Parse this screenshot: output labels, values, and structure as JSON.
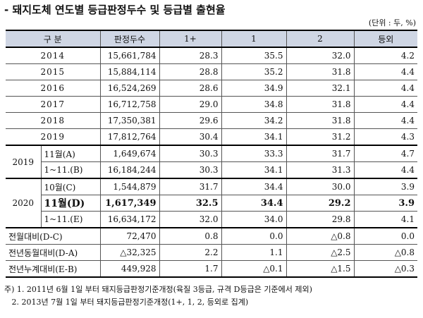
{
  "title": "- 돼지도체 연도별 등급판정두수 및 등급별 출현율",
  "unit": "(단위 : 두, %)",
  "headers": [
    "구  분",
    "판정두수",
    "1+",
    "1",
    "2",
    "등외"
  ],
  "years": [
    {
      "label": "2014",
      "count": "15,661,784",
      "p1plus": "28.3",
      "p1": "35.5",
      "p2": "32.0",
      "other": "4.2"
    },
    {
      "label": "2015",
      "count": "15,884,114",
      "p1plus": "28.8",
      "p1": "35.2",
      "p2": "31.8",
      "other": "4.4"
    },
    {
      "label": "2016",
      "count": "16,524,269",
      "p1plus": "28.6",
      "p1": "34.9",
      "p2": "32.1",
      "other": "4.4"
    },
    {
      "label": "2017",
      "count": "16,712,758",
      "p1plus": "29.0",
      "p1": "34.8",
      "p2": "31.8",
      "other": "4.4"
    },
    {
      "label": "2018",
      "count": "17,350,381",
      "p1plus": "29.6",
      "p1": "34.2",
      "p2": "31.8",
      "other": "4.4"
    },
    {
      "label": "2019",
      "count": "17,812,764",
      "p1plus": "30.4",
      "p1": "34.1",
      "p2": "31.2",
      "other": "4.3"
    }
  ],
  "group2019": {
    "year": "2019",
    "rows": [
      {
        "label": "11월(A)",
        "count": "1,649,674",
        "p1plus": "30.3",
        "p1": "33.3",
        "p2": "31.7",
        "other": "4.7"
      },
      {
        "label": "1~11.(B)",
        "count": "16,184,244",
        "p1plus": "30.3",
        "p1": "34.1",
        "p2": "31.3",
        "other": "4.4"
      }
    ]
  },
  "group2020": {
    "year": "2020",
    "rows": [
      {
        "label": "10월(C)",
        "count": "1,544,879",
        "p1plus": "31.7",
        "p1": "34.4",
        "p2": "30.0",
        "other": "3.9"
      },
      {
        "label": "11월(D)",
        "count": "1,617,349",
        "p1plus": "32.5",
        "p1": "34.4",
        "p2": "29.2",
        "other": "3.9"
      },
      {
        "label": "1~11.(E)",
        "count": "16,634,172",
        "p1plus": "32.0",
        "p1": "34.0",
        "p2": "29.8",
        "other": "4.1"
      }
    ]
  },
  "comparisons": [
    {
      "label": "전월대비(D-C)",
      "count": "72,470",
      "p1plus": "0.8",
      "p1": "0.0",
      "p2": "△0.8",
      "other": "0.0"
    },
    {
      "label": "전년동월대비(D-A)",
      "count": "△32,325",
      "p1plus": "2.2",
      "p1": "1.1",
      "p2": "△2.5",
      "other": "△0.8"
    },
    {
      "label": "전년누계대비(E-B)",
      "count": "449,928",
      "p1plus": "1.7",
      "p1": "△0.1",
      "p2": "△1.5",
      "other": "△0.3"
    }
  ],
  "notes": [
    "주) 1. 2011년 6월 1일 부터 돼지등급판정기준개정(육질 3등급, 규격 D등급은 기준에서 제외)",
    "   2. 2013년 7월 1일 부터 돼지등급판정기준개정(1+, 1, 2, 등외로 집계)"
  ]
}
